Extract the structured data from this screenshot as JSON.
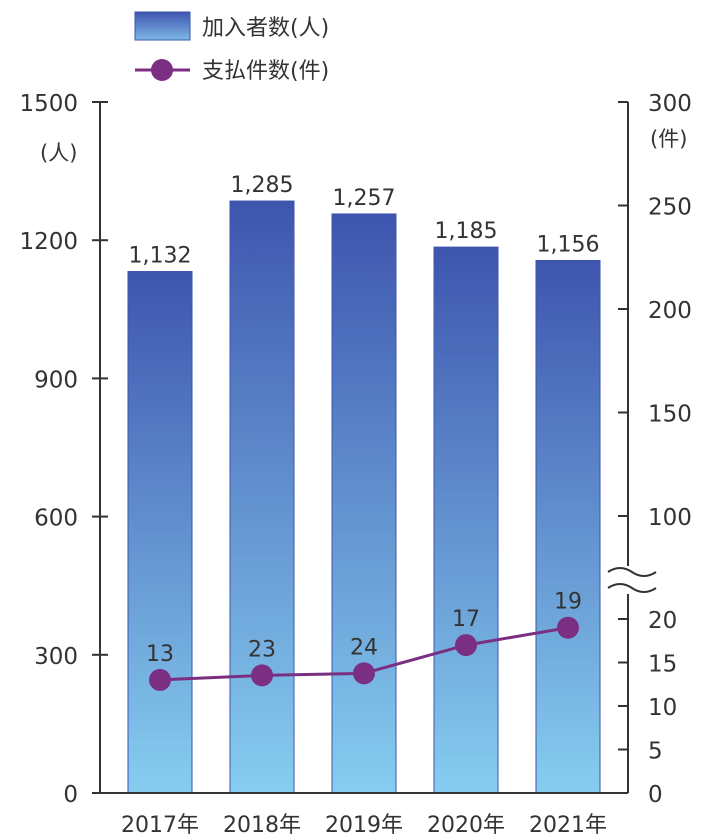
{
  "chart_data": {
    "type": "bar",
    "categories": [
      "2017年",
      "2018年",
      "2019年",
      "2020年",
      "2021年"
    ],
    "series": [
      {
        "name": "加入者数(人)",
        "kind": "bar",
        "axis": "left",
        "values": [
          1132,
          1285,
          1257,
          1185,
          1156
        ],
        "labels": [
          "1,132",
          "1,285",
          "1,257",
          "1,185",
          "1,156"
        ]
      },
      {
        "name": "支払件数(件)",
        "kind": "line",
        "axis": "right",
        "values": [
          13,
          23,
          24,
          17,
          19
        ],
        "labels": [
          "13",
          "23",
          "24",
          "17",
          "19"
        ]
      }
    ],
    "left_axis": {
      "unit": "(人)",
      "ylim": [
        0,
        1500
      ],
      "ticks": [
        "0",
        "300",
        "600",
        "900",
        "1200",
        "1500"
      ]
    },
    "right_axis": {
      "unit": "(件)",
      "lower_range": [
        0,
        20
      ],
      "upper_range": [
        100,
        300
      ],
      "ticks": [
        "0",
        "5",
        "10",
        "15",
        "20",
        "100",
        "150",
        "200",
        "250",
        "300"
      ],
      "broken": true
    },
    "legend": [
      "加入者数(人)",
      "支払件数(件)"
    ],
    "legend_position": "top-left",
    "colors": {
      "bar_top": "#3e55ae",
      "bar_bottom": "#86cdf0",
      "line": "#7b2f82",
      "axis": "#333333"
    }
  }
}
